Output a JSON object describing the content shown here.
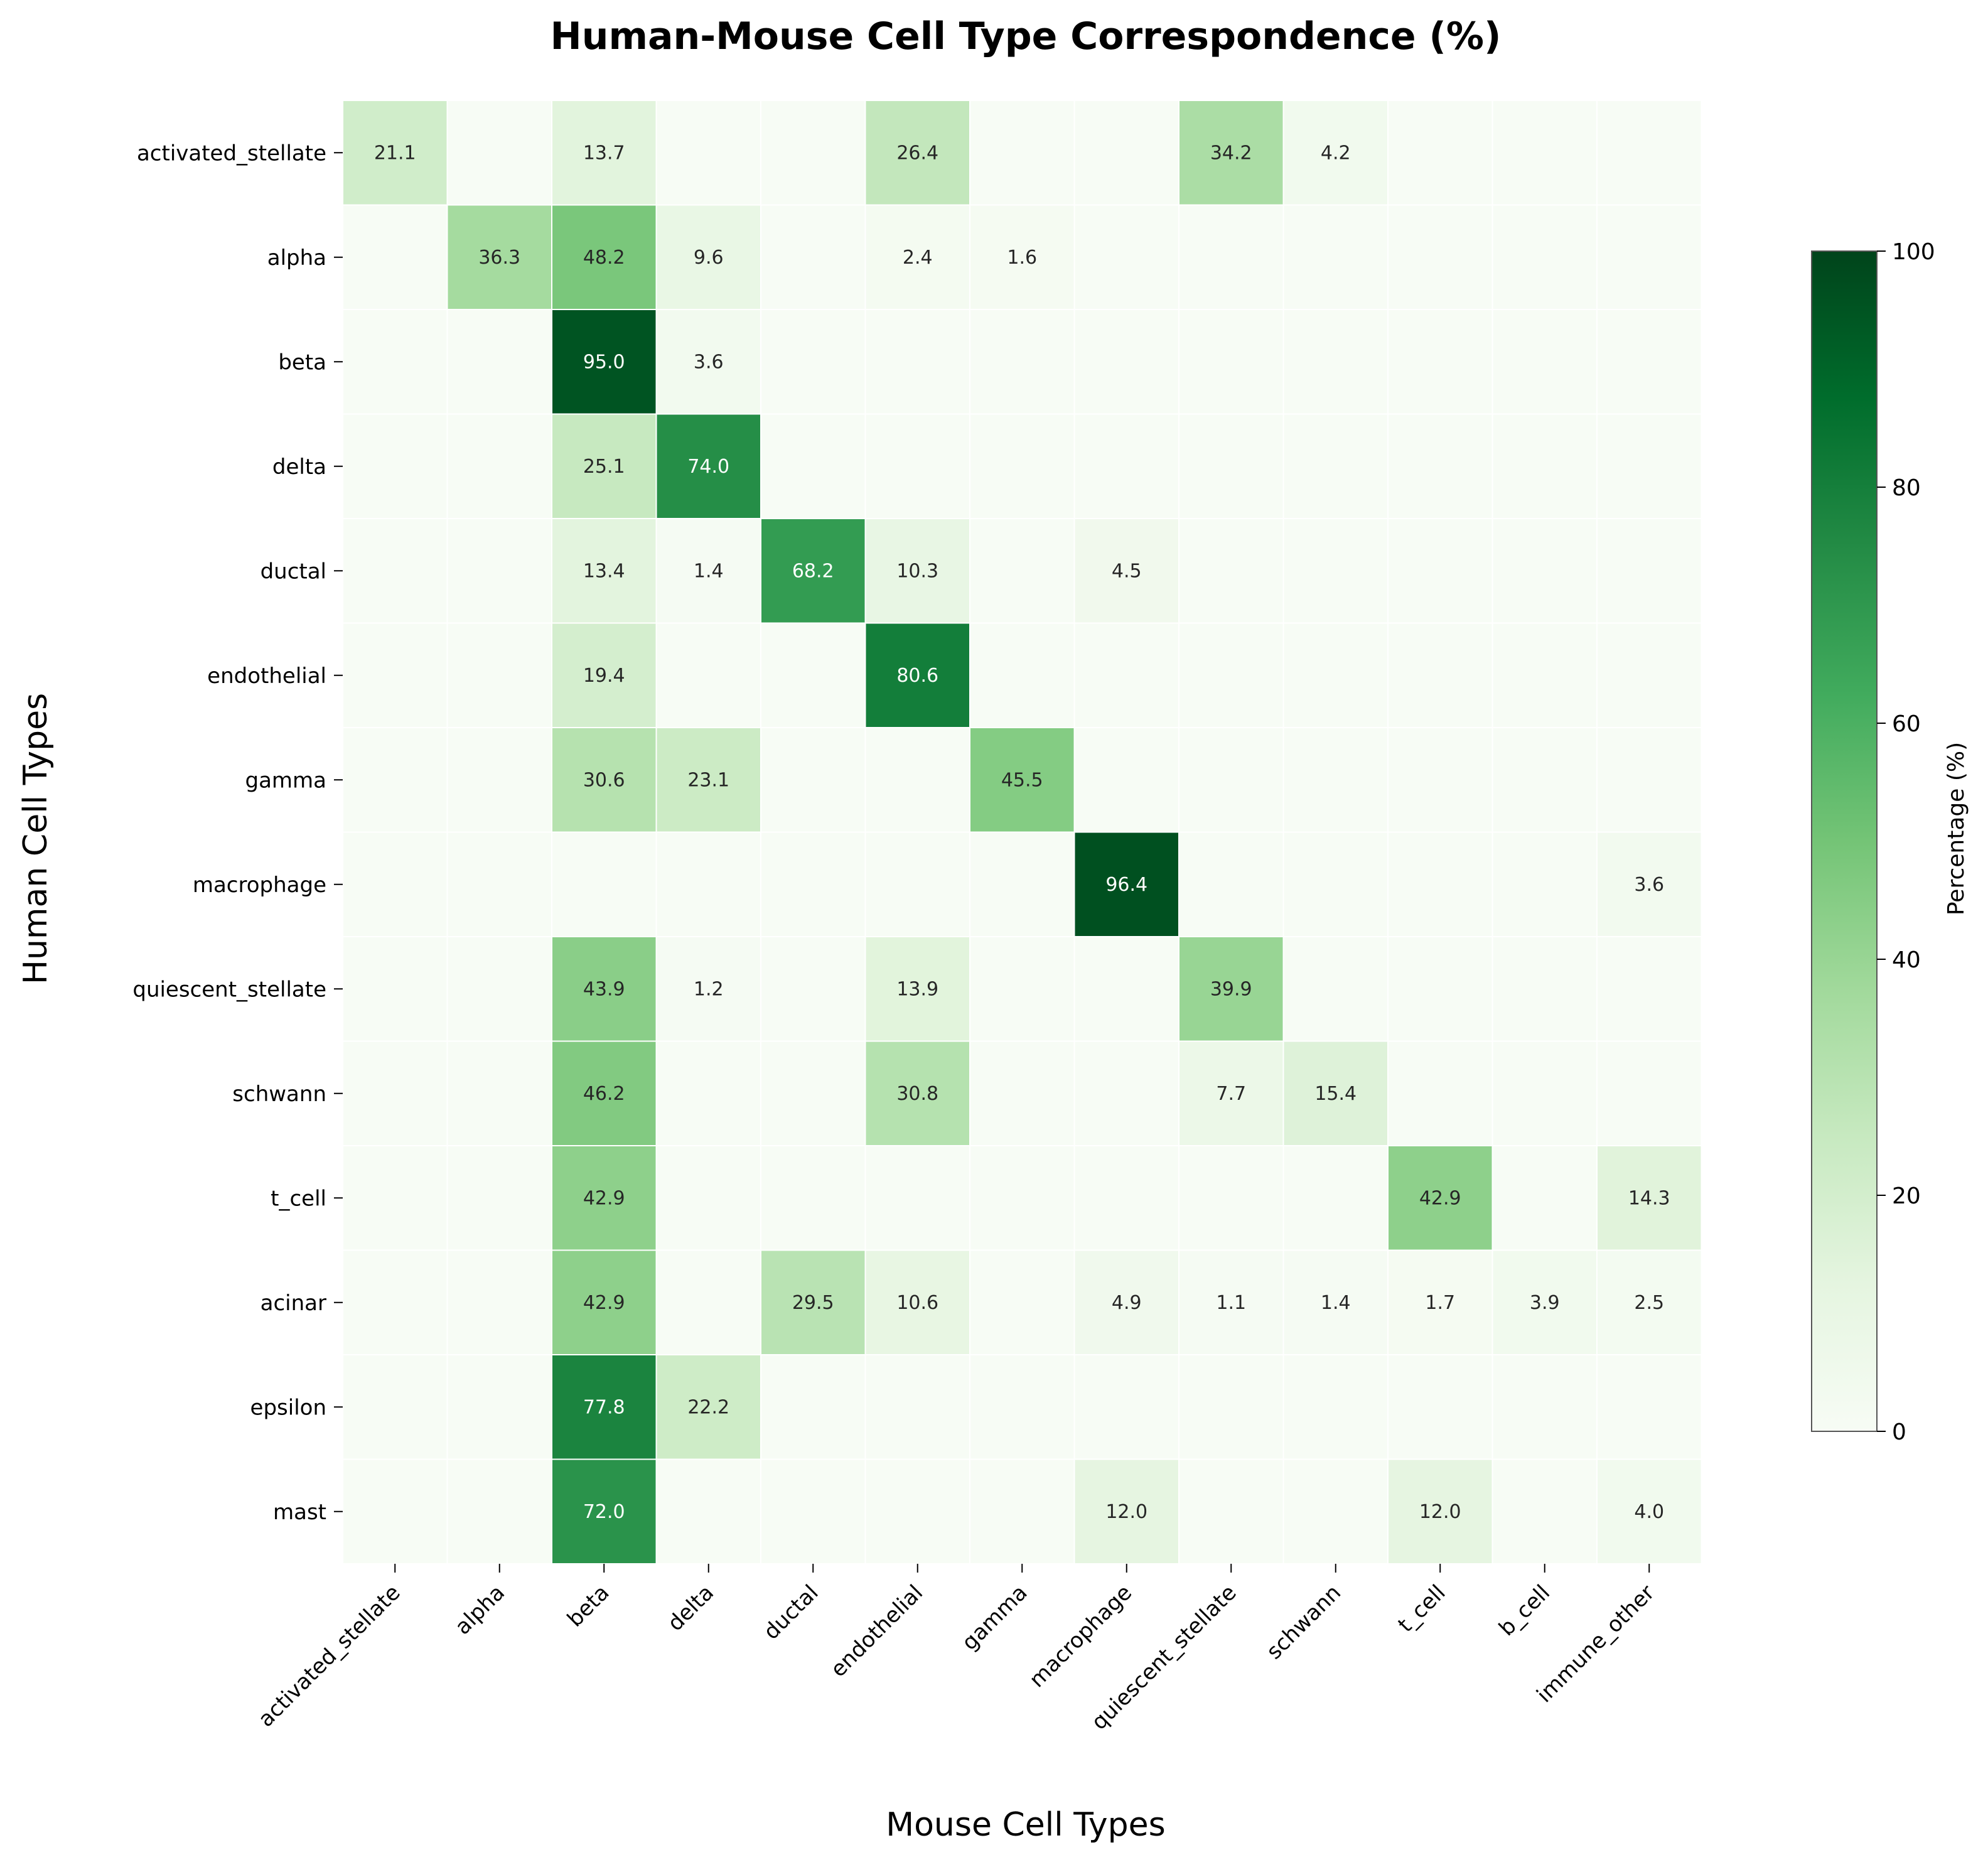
{
  "chart_data": {
    "type": "heatmap",
    "title": "Human-Mouse Cell Type Correspondence (%)",
    "xlabel": "Mouse Cell Types",
    "ylabel": "Human Cell Types",
    "colorbar_label": "Percentage (%)",
    "colorbar_range": [
      0,
      100
    ],
    "colorbar_ticks": [
      "0",
      "20",
      "40",
      "60",
      "80",
      "100"
    ],
    "colormap": "Greens",
    "colormap_stops": [
      "#f7fcf5",
      "#e5f5e0",
      "#c7e9c0",
      "#a1d99b",
      "#74c476",
      "#41ab5d",
      "#238b45",
      "#006d2c",
      "#00441b"
    ],
    "grid_line_color": "#ffffff",
    "x_categories": [
      "activated_stellate",
      "alpha",
      "beta",
      "delta",
      "ductal",
      "endothelial",
      "gamma",
      "macrophage",
      "quiescent_stellate",
      "schwann",
      "t_cell",
      "b_cell",
      "immune_other"
    ],
    "y_categories": [
      "activated_stellate",
      "alpha",
      "beta",
      "delta",
      "ductal",
      "endothelial",
      "gamma",
      "macrophage",
      "quiescent_stellate",
      "schwann",
      "t_cell",
      "acinar",
      "epsilon",
      "mast"
    ],
    "values": [
      [
        21.1,
        0,
        13.7,
        0,
        0,
        26.4,
        0,
        0,
        34.2,
        4.2,
        0,
        0,
        0
      ],
      [
        0,
        36.3,
        48.2,
        9.6,
        0,
        2.4,
        1.6,
        0,
        0,
        0,
        0,
        0,
        0
      ],
      [
        0,
        0,
        95.0,
        3.6,
        0,
        0,
        0,
        0,
        0,
        0,
        0,
        0,
        0
      ],
      [
        0,
        0,
        25.1,
        74.0,
        0,
        0,
        0,
        0,
        0,
        0,
        0,
        0,
        0
      ],
      [
        0,
        0,
        13.4,
        1.4,
        68.2,
        10.3,
        0,
        4.5,
        0,
        0,
        0,
        0,
        0
      ],
      [
        0,
        0,
        19.4,
        0,
        0,
        80.6,
        0,
        0,
        0,
        0,
        0,
        0,
        0
      ],
      [
        0,
        0,
        30.6,
        23.1,
        0,
        0,
        45.5,
        0,
        0,
        0,
        0,
        0,
        0
      ],
      [
        0,
        0,
        0,
        0,
        0,
        0,
        0,
        96.4,
        0,
        0,
        0,
        0,
        3.6
      ],
      [
        0,
        0,
        43.9,
        1.2,
        0,
        13.9,
        0,
        0,
        39.9,
        0,
        0,
        0,
        0
      ],
      [
        0,
        0,
        46.2,
        0,
        0,
        30.8,
        0,
        0,
        7.7,
        15.4,
        0,
        0,
        0
      ],
      [
        0,
        0,
        42.9,
        0,
        0,
        0,
        0,
        0,
        0,
        0,
        42.9,
        0,
        14.3
      ],
      [
        0,
        0,
        42.9,
        0,
        29.5,
        10.6,
        0,
        4.9,
        1.1,
        1.4,
        1.7,
        3.9,
        2.5
      ],
      [
        0,
        0,
        77.8,
        22.2,
        0,
        0,
        0,
        0,
        0,
        0,
        0,
        0,
        0
      ],
      [
        0,
        0,
        72.0,
        0,
        0,
        0,
        0,
        12.0,
        0,
        0,
        12.0,
        0,
        4.0
      ]
    ],
    "annotation_threshold": 1.0,
    "annotation_format": "one_decimal"
  }
}
